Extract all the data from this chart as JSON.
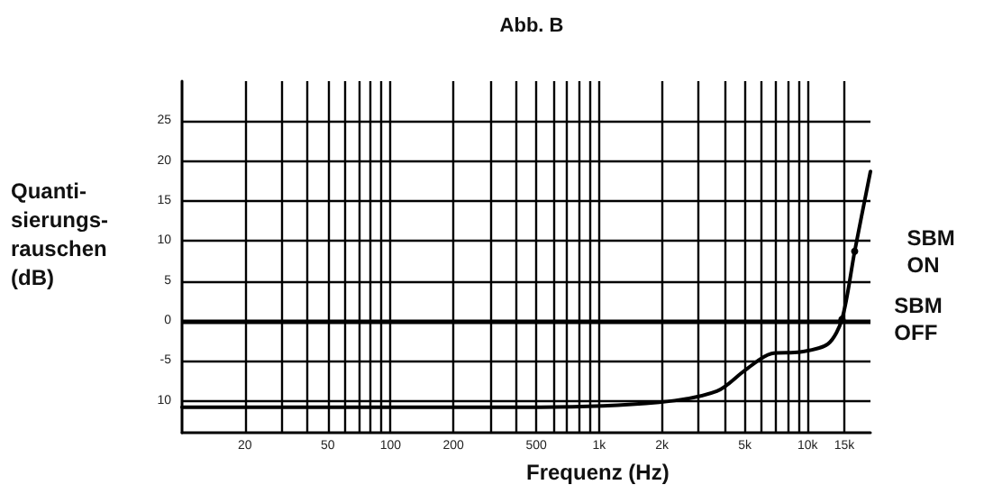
{
  "chart_data": {
    "type": "line",
    "title": "Abb. B",
    "xlabel": "Frequenz (Hz)",
    "ylabel": "Quanti-\nsierungs-\nrauschen\n(dB)",
    "log": "x",
    "grid": true,
    "marker": "none",
    "line_style": "solid",
    "xlim": [
      10,
      20000
    ],
    "ylim": [
      -14,
      30
    ],
    "xticks": [
      {
        "value": 20,
        "label": "20"
      },
      {
        "value": 30,
        "label": null
      },
      {
        "value": 40,
        "label": null
      },
      {
        "value": 50,
        "label": "50"
      },
      {
        "value": 60,
        "label": null
      },
      {
        "value": 70,
        "label": null
      },
      {
        "value": 80,
        "label": null
      },
      {
        "value": 90,
        "label": null
      },
      {
        "value": 100,
        "label": "100"
      },
      {
        "value": 200,
        "label": "200"
      },
      {
        "value": 300,
        "label": null
      },
      {
        "value": 400,
        "label": null
      },
      {
        "value": 500,
        "label": "500"
      },
      {
        "value": 600,
        "label": null
      },
      {
        "value": 700,
        "label": null
      },
      {
        "value": 800,
        "label": null
      },
      {
        "value": 900,
        "label": null
      },
      {
        "value": 1000,
        "label": "1k"
      },
      {
        "value": 2000,
        "label": "2k"
      },
      {
        "value": 3000,
        "label": null
      },
      {
        "value": 4000,
        "label": null
      },
      {
        "value": 5000,
        "label": "5k"
      },
      {
        "value": 6000,
        "label": null
      },
      {
        "value": 7000,
        "label": null
      },
      {
        "value": 8000,
        "label": null
      },
      {
        "value": 9000,
        "label": null
      },
      {
        "value": 10000,
        "label": "10k"
      },
      {
        "value": 15000,
        "label": "15k"
      }
    ],
    "yticks": [
      {
        "value": -10,
        "label": "10"
      },
      -5,
      0,
      5,
      10,
      15,
      20,
      25
    ],
    "ref_lines": [
      {
        "axis": "y",
        "value": 0,
        "label": null,
        "color": "#000000"
      }
    ],
    "series": [
      {
        "color": "#000000",
        "x": [
          10,
          525,
          1940,
          3670,
          5000,
          6700,
          9200,
          12500,
          14600,
          16800,
          20000
        ],
        "values": [
          -10.8,
          -10.8,
          -10.2,
          -8.8,
          -6.2,
          -4.1,
          -3.9,
          -2.9,
          0.2,
          8.7,
          18.7
        ]
      }
    ],
    "annotations": [
      {
        "text": "SBM ON",
        "x": 16800,
        "y": 8.7
      },
      {
        "text": "SBM OFF",
        "x": 14600,
        "y": 0.2
      }
    ]
  }
}
